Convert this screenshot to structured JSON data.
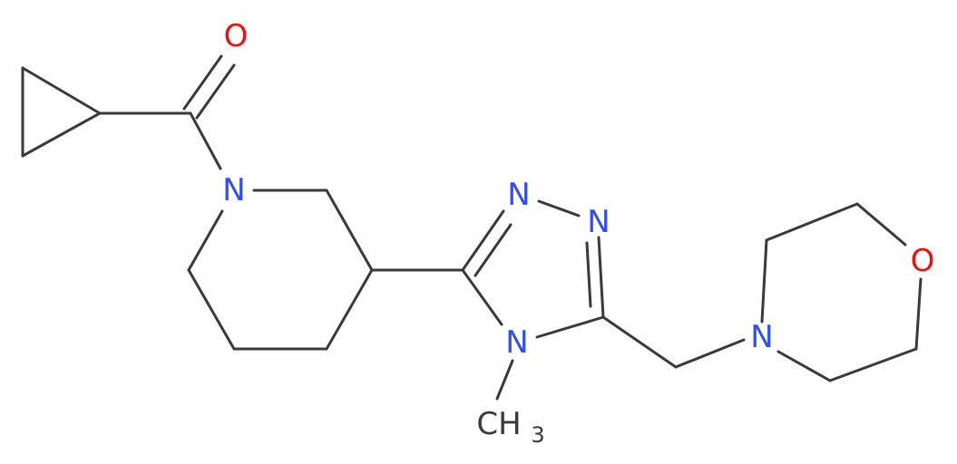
{
  "atoms": [
    {
      "label": "O"
    },
    {
      "label": "N"
    },
    {
      "label": "N"
    },
    {
      "label": "N"
    },
    {
      "label": "N"
    },
    {
      "label": "N"
    },
    {
      "label": "O"
    }
  ],
  "methyl": {
    "label": "CH",
    "subscript": "3"
  }
}
